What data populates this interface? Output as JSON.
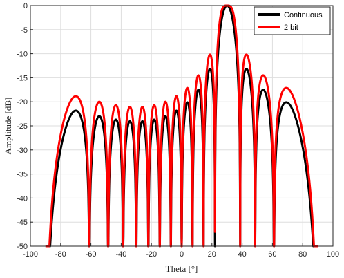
{
  "chart_data": {
    "type": "line",
    "title": "",
    "xlabel": "Theta [°]",
    "ylabel": "Amplitude [dB]",
    "xlim": [
      -100,
      100
    ],
    "ylim": [
      -50,
      0
    ],
    "xticks": [
      -100,
      -80,
      -60,
      -40,
      -20,
      0,
      20,
      40,
      60,
      80,
      100
    ],
    "yticks": [
      0,
      -5,
      -10,
      -15,
      -20,
      -25,
      -30,
      -35,
      -40,
      -45,
      -50
    ],
    "grid": true,
    "legend_position": "top-right",
    "series": [
      {
        "name": "Continuous",
        "color": "#000000",
        "model": {
          "N": 16,
          "steer_deg": 30,
          "theta_start": -90,
          "theta_end": 90,
          "offset_db": 0,
          "floor_db": -50
        }
      },
      {
        "name": "2 bit",
        "color": "#ff0000",
        "model": {
          "N": 16,
          "steer_deg": 30,
          "theta_start": -90,
          "theta_end": 90,
          "offset_db": 3,
          "floor_db": -50
        }
      }
    ]
  }
}
